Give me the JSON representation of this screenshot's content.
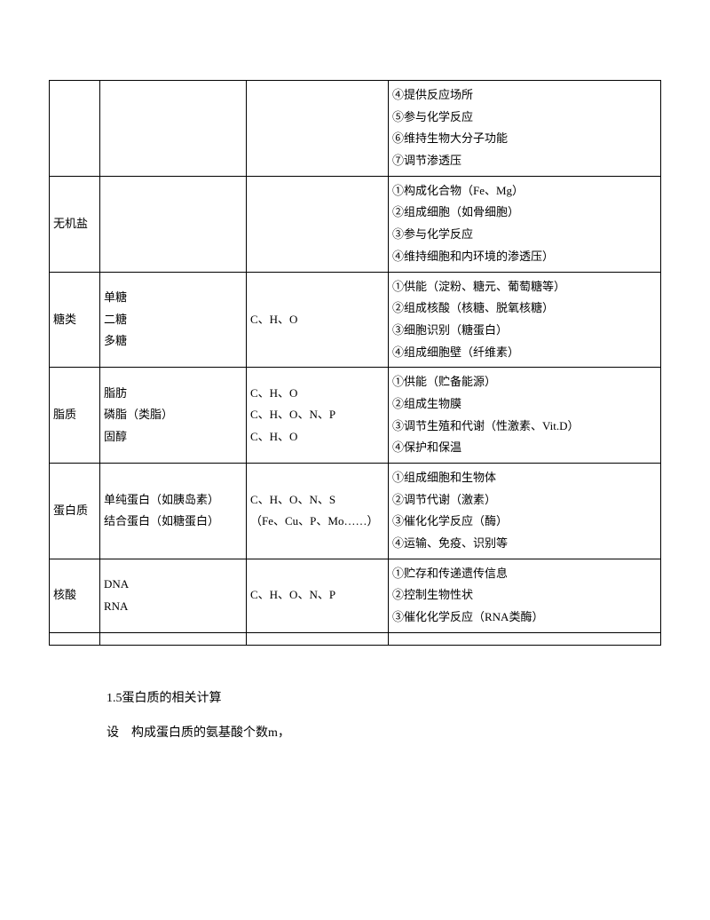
{
  "table": {
    "rows": [
      {
        "c1": "",
        "c2": "",
        "c3": "",
        "c4": [
          "④提供反应场所",
          "⑤参与化学反应",
          "⑥维持生物大分子功能",
          "⑦调节渗透压"
        ]
      },
      {
        "c1": "无机盐",
        "c2": "",
        "c3": "",
        "c4": [
          "①构成化合物（Fe、Mg）",
          "②组成细胞（如骨细胞）",
          "③参与化学反应",
          "④维持细胞和内环境的渗透压）"
        ]
      },
      {
        "c1": "糖类",
        "c2": [
          "单糖",
          "二糖",
          "多糖"
        ],
        "c3": "C、H、O",
        "c4": [
          "①供能（淀粉、糖元、葡萄糖等）",
          "②组成核酸（核糖、脱氧核糖）",
          "③细胞识别（糖蛋白）",
          "④组成细胞壁（纤维素）"
        ]
      },
      {
        "c1": "脂质",
        "c2": [
          "脂肪",
          "磷脂（类脂）",
          "固醇"
        ],
        "c3": [
          "C、H、O",
          "C、H、O、N、P",
          "C、H、O"
        ],
        "c4": [
          "①供能（贮备能源）",
          "②组成生物膜",
          "③调节生殖和代谢（性激素、Vit.D）",
          "④保护和保温"
        ]
      },
      {
        "c1": "蛋白质",
        "c2": [
          "单纯蛋白（如胰岛素）",
          "结合蛋白（如糖蛋白）"
        ],
        "c3": [
          "C、H、O、N、S",
          "（Fe、Cu、P、Mo……）"
        ],
        "c4": [
          "①组成细胞和生物体",
          "②调节代谢（激素）",
          "③催化化学反应（酶）",
          "④运输、免疫、识别等"
        ]
      },
      {
        "c1": "核酸",
        "c2": [
          "DNA",
          "RNA"
        ],
        "c3": "C、H、O、N、P",
        "c4": [
          "①贮存和传递遗传信息",
          "②控制生物性状",
          "③催化化学反应（RNA类酶）"
        ]
      }
    ]
  },
  "footer": {
    "line1": "1.5蛋白质的相关计算",
    "line2": "设　构成蛋白质的氨基酸个数m，"
  }
}
